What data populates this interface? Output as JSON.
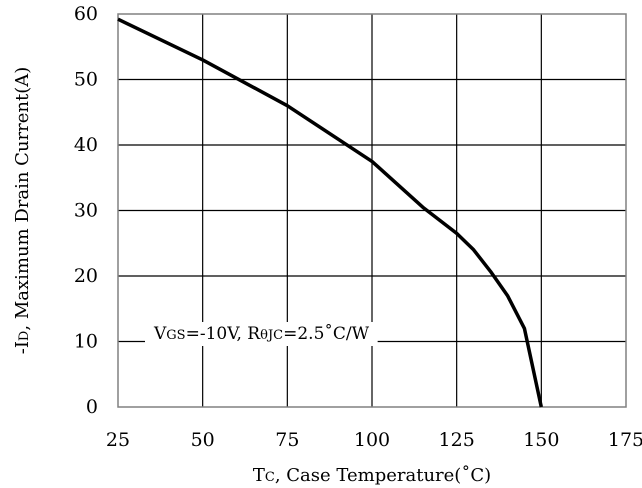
{
  "chart_data": {
    "type": "line",
    "title": "",
    "xlabel": {
      "main": "T",
      "sub": "C",
      "rest": ", Case Temperature(˚C)"
    },
    "ylabel": {
      "prefix": "-I",
      "sub": "D",
      "rest": ", Maximum Drain Current(A)"
    },
    "xlim": [
      25,
      175
    ],
    "ylim": [
      0,
      60
    ],
    "x_ticks": [
      25,
      50,
      75,
      100,
      125,
      150,
      175
    ],
    "y_ticks": [
      0,
      10,
      20,
      30,
      40,
      50,
      60
    ],
    "grid": true,
    "annotation": {
      "parts": [
        {
          "text": "V",
          "sub": false
        },
        {
          "text": "GS",
          "sub": true
        },
        {
          "text": "=-10V, R",
          "sub": false
        },
        {
          "text": "θJC",
          "sub": true
        },
        {
          "text": "=2.5˚C/W",
          "sub": false
        }
      ]
    },
    "series": [
      {
        "x": [
          25,
          50,
          75,
          100,
          115,
          125,
          130,
          135,
          140,
          145,
          150
        ],
        "y": [
          59.2,
          53,
          46,
          37.5,
          30.5,
          26.5,
          24,
          20.7,
          17,
          12,
          0
        ]
      }
    ]
  }
}
